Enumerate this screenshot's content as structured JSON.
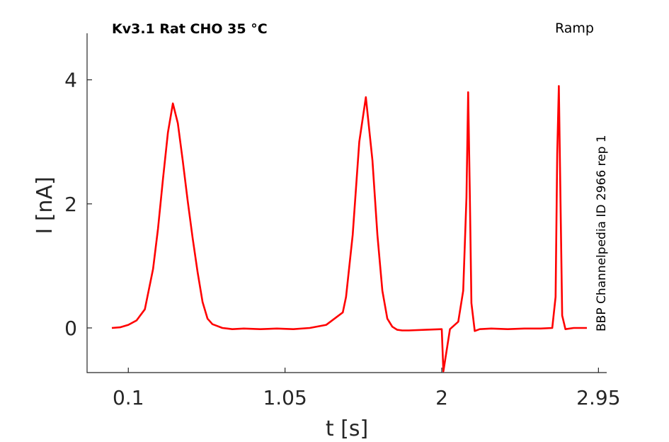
{
  "chart_data": {
    "type": "line",
    "title": "Kv3.1  Rat  CHO  35 °C",
    "protocol": "Ramp",
    "side_label": "BBP Channelpedia ID 2966 rep 1",
    "xlabel": "t [s]",
    "ylabel": "I [nA]",
    "xlim": [
      -0.15,
      3.0
    ],
    "ylim": [
      -0.72,
      4.75
    ],
    "x_ticks": [
      0.1,
      1.05,
      2,
      2.95
    ],
    "x_tick_labels": [
      "0.1",
      "1.05",
      "2",
      "2.95"
    ],
    "y_ticks": [
      0,
      2,
      4
    ],
    "y_tick_labels": [
      "0",
      "2",
      "4"
    ],
    "grid": false,
    "color": "#ff0000",
    "series": [
      {
        "x": [
          0.0,
          0.05,
          0.1,
          0.15,
          0.2,
          0.25,
          0.28,
          0.31,
          0.34,
          0.37,
          0.4,
          0.43,
          0.46,
          0.49,
          0.52,
          0.55,
          0.58,
          0.61,
          0.64,
          0.67,
          0.7,
          0.73,
          0.8,
          0.9,
          1.0,
          1.1,
          1.2,
          1.3,
          1.4,
          1.42,
          1.46,
          1.5,
          1.54,
          1.58,
          1.61,
          1.64,
          1.67,
          1.7,
          1.73,
          1.76,
          1.8,
          1.9,
          2.0,
          2.01,
          2.05,
          2.1,
          2.13,
          2.15,
          2.16,
          2.17,
          2.18,
          2.2,
          2.23,
          2.3,
          2.4,
          2.5,
          2.6,
          2.67,
          2.69,
          2.7,
          2.71,
          2.72,
          2.73,
          2.75,
          2.8,
          2.88
        ],
        "y": [
          0.0,
          0.01,
          0.05,
          0.12,
          0.3,
          0.95,
          1.6,
          2.4,
          3.15,
          3.62,
          3.3,
          2.7,
          2.05,
          1.45,
          0.9,
          0.42,
          0.15,
          0.06,
          0.03,
          0.0,
          -0.01,
          -0.02,
          -0.01,
          -0.02,
          -0.01,
          -0.02,
          0.0,
          0.05,
          0.25,
          0.5,
          1.5,
          3.0,
          3.72,
          2.7,
          1.5,
          0.6,
          0.15,
          0.02,
          -0.03,
          -0.04,
          -0.04,
          -0.03,
          -0.02,
          -0.7,
          -0.02,
          0.1,
          0.6,
          2.1,
          3.8,
          2.2,
          0.4,
          -0.05,
          -0.02,
          -0.01,
          -0.02,
          -0.01,
          -0.01,
          0.0,
          0.5,
          2.8,
          3.9,
          2.0,
          0.2,
          -0.02,
          0.0,
          0.0
        ]
      }
    ]
  }
}
